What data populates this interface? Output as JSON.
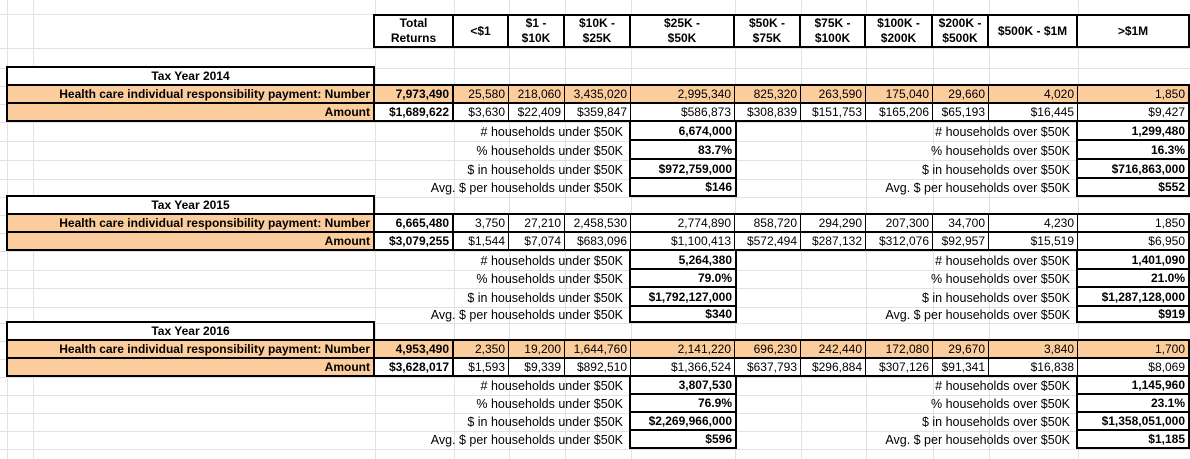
{
  "sheet": {
    "columns": [
      "Total\nReturns",
      "<$1",
      "$1 -\n$10K",
      "$10K -\n$25K",
      "$25K -\n$50K",
      "$50K -\n$75K",
      "$75K -\n$100K",
      "$100K -\n$200K",
      "$200K -\n$500K",
      "$500K - $1M",
      ">$1M"
    ],
    "row_labels": {
      "number": "Health care individual responsibility payment: Number",
      "amount": "Amount"
    },
    "summary_labels": {
      "under": [
        "# households under $50K",
        "% households under $50K",
        "$ in households under $50K",
        "Avg. $ per households under $50K"
      ],
      "over": [
        "# households over $50K",
        "% households over $50K",
        "$ in households over $50K",
        "Avg. $ per households over $50K"
      ]
    },
    "flagged_summary_rows": [
      0,
      2
    ],
    "sections": [
      {
        "tax_year": "Tax Year 2014",
        "number_values_highlighted": true,
        "number": [
          "7,973,490",
          "25,580",
          "218,060",
          "3,435,020",
          "2,995,340",
          "825,320",
          "263,590",
          "175,040",
          "29,660",
          "4,020",
          "1,850"
        ],
        "amount": [
          "$1,689,622",
          "$3,630",
          "$22,409",
          "$359,847",
          "$586,873",
          "$308,839",
          "$151,753",
          "$165,206",
          "$65,193",
          "$16,445",
          "$9,427"
        ],
        "under": [
          "6,674,000",
          "83.7%",
          "$972,759,000",
          "$146"
        ],
        "over": [
          "1,299,480",
          "16.3%",
          "$716,863,000",
          "$552"
        ]
      },
      {
        "tax_year": "Tax Year 2015",
        "number_values_highlighted": false,
        "number": [
          "6,665,480",
          "3,750",
          "27,210",
          "2,458,530",
          "2,774,890",
          "858,720",
          "294,290",
          "207,300",
          "34,700",
          "4,230",
          "1,850"
        ],
        "amount": [
          "$3,079,255",
          "$1,544",
          "$7,074",
          "$683,096",
          "$1,100,413",
          "$572,494",
          "$287,132",
          "$312,076",
          "$92,957",
          "$15,519",
          "$6,950"
        ],
        "under": [
          "5,264,380",
          "79.0%",
          "$1,792,127,000",
          "$340"
        ],
        "over": [
          "1,401,090",
          "21.0%",
          "$1,287,128,000",
          "$919"
        ]
      },
      {
        "tax_year": "Tax Year 2016",
        "number_values_highlighted": true,
        "number": [
          "4,953,490",
          "2,350",
          "19,200",
          "1,644,760",
          "2,141,220",
          "696,230",
          "242,440",
          "172,080",
          "29,670",
          "3,840",
          "1,700"
        ],
        "amount": [
          "$3,628,017",
          "$1,593",
          "$9,339",
          "$892,510",
          "$1,366,524",
          "$637,793",
          "$296,884",
          "$307,126",
          "$91,341",
          "$16,838",
          "$8,069"
        ],
        "under": [
          "3,807,530",
          "76.9%",
          "$2,269,966,000",
          "$596"
        ],
        "over": [
          "1,145,960",
          "23.1%",
          "$1,358,051,000",
          "$1,185"
        ]
      }
    ],
    "colors": {
      "highlight": "#FBCC9C",
      "flag_green": "#1E7B34",
      "gridline": "#E2E2E2",
      "border": "#000000"
    }
  }
}
